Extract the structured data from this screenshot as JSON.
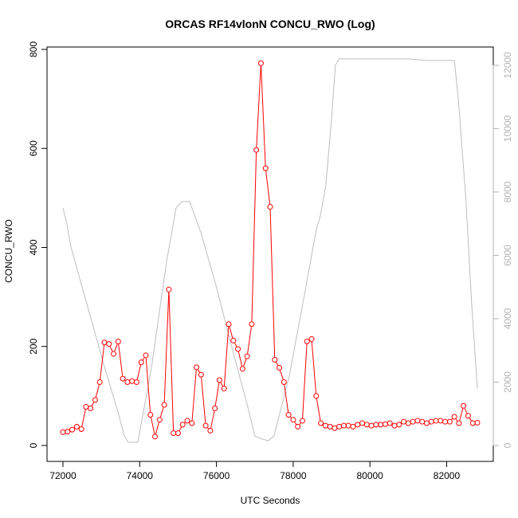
{
  "chart_data": {
    "type": "line",
    "title": "ORCAS RF14vlonN CONCU_RWO (Log)",
    "xlabel": "UTC Seconds",
    "ylabel": "CONCU_RWO",
    "y2label": "",
    "xlim": [
      72000,
      82800
    ],
    "ylim": [
      0,
      800
    ],
    "y2lim": [
      0,
      12500
    ],
    "x_ticks": [
      72000,
      74000,
      76000,
      78000,
      80000,
      82000
    ],
    "y_ticks": [
      0,
      200,
      400,
      600,
      800
    ],
    "y2_ticks": [
      0,
      2000,
      4000,
      6000,
      8000,
      10000,
      12000
    ],
    "grid": false,
    "legend": "none",
    "colors": {
      "series": "#ff0000",
      "secondary": "#bebebe",
      "axis": "#000000",
      "right_axis": "#b3b3b3"
    },
    "series": [
      {
        "axis": "left",
        "style": "line+open-circle",
        "x": [
          72000,
          72120,
          72240,
          72360,
          72480,
          72600,
          72720,
          72840,
          72960,
          73080,
          73200,
          73320,
          73440,
          73560,
          73680,
          73800,
          73920,
          74040,
          74160,
          74280,
          74400,
          74520,
          74640,
          74760,
          74880,
          75000,
          75120,
          75240,
          75360,
          75480,
          75600,
          75720,
          75840,
          75960,
          76080,
          76200,
          76320,
          76440,
          76560,
          76680,
          76800,
          76920,
          77040,
          77160,
          77280,
          77400,
          77520,
          77640,
          77760,
          77880,
          78000,
          78120,
          78240,
          78360,
          78480,
          78600,
          78720,
          78840,
          78960,
          79080,
          79200,
          79320,
          79440,
          79560,
          79680,
          79800,
          79920,
          80040,
          80160,
          80280,
          80400,
          80520,
          80640,
          80760,
          80880,
          81000,
          81120,
          81240,
          81360,
          81480,
          81600,
          81720,
          81840,
          81960,
          82080,
          82200,
          82320,
          82440,
          82560,
          82680,
          82800
        ],
        "values": [
          27,
          28,
          32,
          38,
          33,
          78,
          75,
          92,
          128,
          208,
          205,
          185,
          210,
          135,
          128,
          130,
          128,
          168,
          182,
          62,
          18,
          52,
          82,
          315,
          25,
          25,
          42,
          50,
          45,
          158,
          143,
          40,
          30,
          75,
          132,
          115,
          245,
          212,
          195,
          155,
          180,
          245,
          597,
          772,
          560,
          482,
          173,
          157,
          128,
          62,
          52,
          38,
          50,
          210,
          215,
          100,
          45,
          40,
          38,
          35,
          38,
          40,
          40,
          38,
          42,
          45,
          42,
          40,
          42,
          42,
          43,
          45,
          40,
          42,
          48,
          45,
          48,
          50,
          48,
          45,
          48,
          50,
          50,
          48,
          48,
          58,
          45,
          80,
          60,
          45,
          46
        ]
      },
      {
        "axis": "right",
        "style": "line",
        "x": [
          72000,
          72100,
          72200,
          72500,
          72800,
          73100,
          73400,
          73600,
          73700,
          73950,
          74300,
          74700,
          74950,
          75100,
          75300,
          75600,
          76000,
          76400,
          76800,
          77000,
          77200,
          77350,
          77500,
          77900,
          78300,
          78600,
          78700,
          78850,
          79000,
          79100,
          79200,
          79500,
          80000,
          80500,
          81000,
          81500,
          82000,
          82200,
          82300,
          82500,
          82650,
          82800
        ],
        "values": [
          7500,
          7000,
          6300,
          5000,
          3700,
          2400,
          1200,
          300,
          100,
          100,
          2400,
          5800,
          7500,
          7700,
          7700,
          6700,
          5000,
          3100,
          1300,
          300,
          200,
          150,
          300,
          2200,
          4800,
          6800,
          7200,
          8200,
          10300,
          12000,
          12200,
          12200,
          12200,
          12200,
          12200,
          12150,
          12150,
          12150,
          11000,
          7800,
          4500,
          1800
        ]
      }
    ]
  }
}
